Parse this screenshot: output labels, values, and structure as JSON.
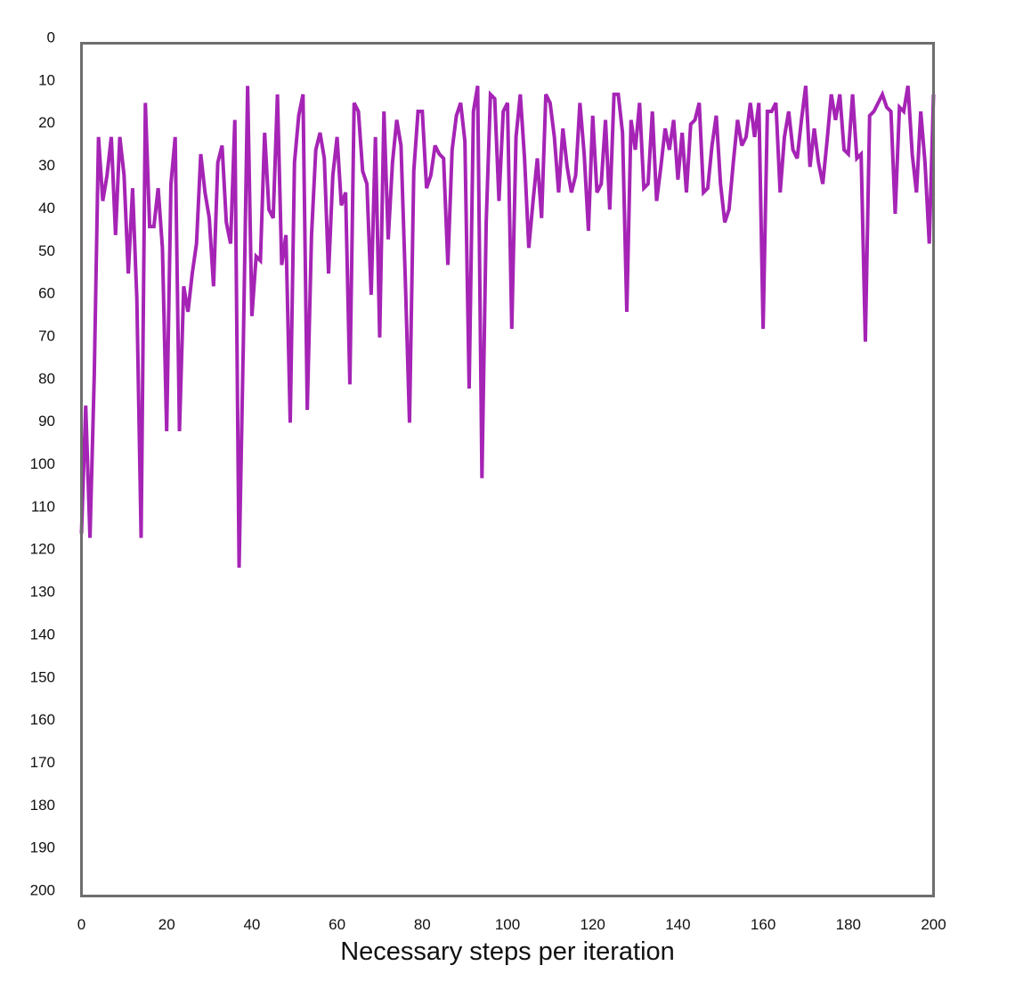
{
  "chart_data": {
    "type": "line",
    "title": "",
    "xlabel": "Necessary steps per iteration",
    "ylabel": "",
    "xlim": [
      0,
      200
    ],
    "ylim": [
      0,
      200
    ],
    "y_inverted": true,
    "grid": false,
    "legend": "none",
    "x_ticks": [
      "0",
      "20",
      "40",
      "60",
      "80",
      "100",
      "120",
      "140",
      "160",
      "180",
      "200"
    ],
    "y_ticks": [
      "0",
      "10",
      "20",
      "30",
      "40",
      "50",
      "60",
      "70",
      "80",
      "90",
      "100",
      "110",
      "120",
      "130",
      "140",
      "150",
      "160",
      "170",
      "180",
      "190",
      "200"
    ],
    "series": [
      {
        "name": "",
        "color": "#a524b5",
        "x": [
          0,
          1,
          2,
          3,
          4,
          5,
          6,
          7,
          8,
          9,
          10,
          11,
          12,
          13,
          14,
          15,
          16,
          17,
          18,
          19,
          20,
          21,
          22,
          23,
          24,
          25,
          26,
          27,
          28,
          29,
          30,
          31,
          32,
          33,
          34,
          35,
          36,
          37,
          38,
          39,
          40,
          41,
          42,
          43,
          44,
          45,
          46,
          47,
          48,
          49,
          50,
          51,
          52,
          53,
          54,
          55,
          56,
          57,
          58,
          59,
          60,
          61,
          62,
          63,
          64,
          65,
          66,
          67,
          68,
          69,
          70,
          71,
          72,
          73,
          74,
          75,
          76,
          77,
          78,
          79,
          80,
          81,
          82,
          83,
          84,
          85,
          86,
          87,
          88,
          89,
          90,
          91,
          92,
          93,
          94,
          95,
          96,
          97,
          98,
          99,
          100,
          101,
          102,
          103,
          104,
          105,
          106,
          107,
          108,
          109,
          110,
          111,
          112,
          113,
          114,
          115,
          116,
          117,
          118,
          119,
          120,
          121,
          122,
          123,
          124,
          125,
          126,
          127,
          128,
          129,
          130,
          131,
          132,
          133,
          134,
          135,
          136,
          137,
          138,
          139,
          140,
          141,
          142,
          143,
          144,
          145,
          146,
          147,
          148,
          149,
          150,
          151,
          152,
          153,
          154,
          155,
          156,
          157,
          158,
          159,
          160,
          161,
          162,
          163,
          164,
          165,
          166,
          167,
          168,
          169,
          170,
          171,
          172,
          173,
          174,
          175,
          176,
          177,
          178,
          179,
          180,
          181,
          182,
          183,
          184,
          185,
          186,
          187,
          188,
          189,
          190,
          191,
          192,
          193,
          194,
          195,
          196,
          197,
          198,
          199,
          200
        ],
        "y": [
          115,
          85,
          116,
          78,
          22,
          37,
          31,
          22,
          45,
          22,
          31,
          54,
          34,
          60,
          116,
          14,
          43,
          43,
          34,
          48,
          91,
          33,
          22,
          91,
          57,
          63,
          54,
          47,
          26,
          35,
          41,
          57,
          28,
          24,
          42,
          47,
          18,
          123,
          70,
          10,
          64,
          50,
          51,
          21,
          39,
          41,
          12,
          52,
          45,
          89,
          28,
          17,
          12,
          86,
          45,
          25,
          21,
          27,
          54,
          31,
          22,
          38,
          35,
          80,
          14,
          16,
          30,
          33,
          59,
          22,
          69,
          16,
          46,
          28,
          18,
          24,
          55,
          89,
          30,
          16,
          16,
          34,
          31,
          24,
          26,
          27,
          52,
          25,
          17,
          14,
          23,
          81,
          16,
          10,
          102,
          42,
          12,
          13,
          37,
          16,
          14,
          67,
          22,
          12,
          27,
          48,
          37,
          27,
          41,
          12,
          14,
          22,
          35,
          20,
          29,
          35,
          31,
          14,
          26,
          44,
          17,
          35,
          33,
          18,
          39,
          12,
          12,
          21,
          63,
          18,
          25,
          14,
          34,
          33,
          16,
          37,
          29,
          20,
          25,
          18,
          32,
          21,
          35,
          19,
          18,
          14,
          35,
          34,
          24,
          17,
          33,
          42,
          39,
          28,
          18,
          24,
          22,
          14,
          22,
          14,
          67,
          16,
          16,
          14,
          35,
          22,
          16,
          25,
          27,
          18,
          10,
          29,
          20,
          28,
          33,
          23,
          12,
          18,
          12,
          25,
          26,
          12,
          27,
          26,
          70,
          17,
          16,
          14,
          12,
          15,
          16,
          40,
          15,
          16,
          10,
          26,
          35,
          16,
          28,
          47,
          12
        ]
      }
    ]
  }
}
